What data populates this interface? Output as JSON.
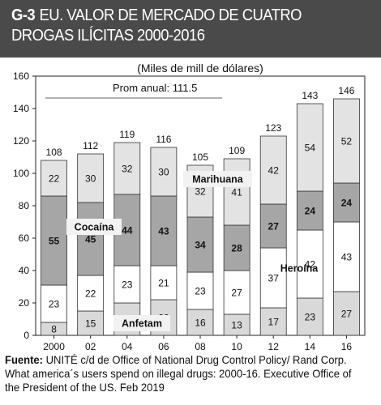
{
  "header": {
    "code": "G-3",
    "title": "EU. VALOR DE MERCADO DE CUATRO DROGAS ILÍCITAS 2000-2016"
  },
  "chart_data": {
    "type": "bar",
    "stacked": true,
    "unit_label": "(Miles de mill de dólares)",
    "categories": [
      "2000",
      "02",
      "04",
      "06",
      "08",
      "10",
      "12",
      "14",
      "16"
    ],
    "ylim": [
      0,
      160
    ],
    "yticks": [
      0,
      20,
      40,
      60,
      80,
      100,
      120,
      140,
      160
    ],
    "series": [
      {
        "name": "Anfetam",
        "color": "#d9d9d9",
        "values": [
          8,
          15,
          20,
          22,
          16,
          13,
          17,
          23,
          27
        ]
      },
      {
        "name": "Heroína",
        "color": "#ffffff",
        "values": [
          23,
          22,
          23,
          21,
          23,
          27,
          37,
          42,
          43
        ]
      },
      {
        "name": "Cocaína",
        "color": "#a6a6a6",
        "values": [
          55,
          45,
          44,
          43,
          34,
          28,
          27,
          24,
          24
        ]
      },
      {
        "name": "Marihuana",
        "color": "#e3e3e3",
        "values": [
          22,
          30,
          32,
          30,
          32,
          41,
          42,
          54,
          52
        ]
      }
    ],
    "totals": [
      108,
      112,
      119,
      116,
      105,
      109,
      123,
      143,
      146
    ],
    "reference_line": {
      "label": "Prom anual: 111.5",
      "value": 111.5
    }
  },
  "source": {
    "label": "Fuente:",
    "text": "UNITÉ c/d de Office of National Drug Control Policy/ Rand Corp. What america´s users spend on illegal drugs: 2000-16. Executive Office of the President of the US. Feb 2019"
  }
}
